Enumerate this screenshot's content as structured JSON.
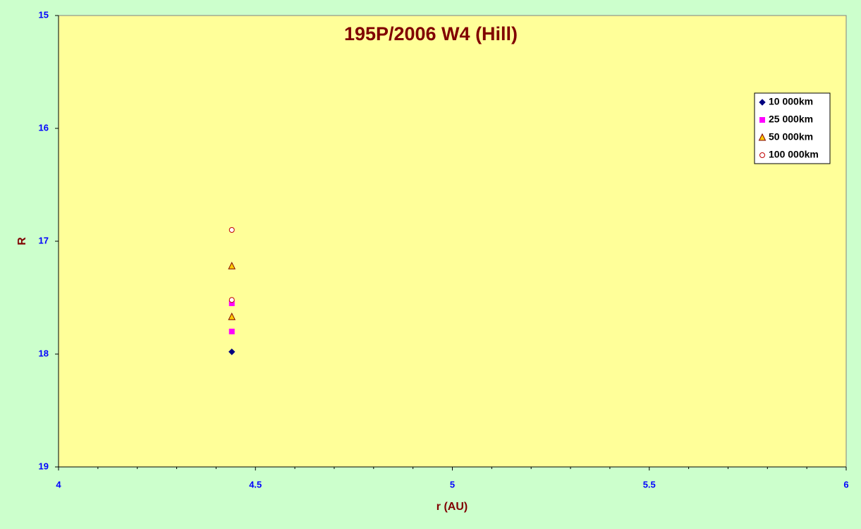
{
  "chart_data": {
    "type": "scatter",
    "title": "195P/2006 W4 (Hill)",
    "x_label": "r (AU)",
    "y_label": "R",
    "xlim": [
      4,
      6
    ],
    "xticks": [
      4,
      4.5,
      5,
      5.5,
      6
    ],
    "x_minor_ticks": [
      4.1,
      4.2,
      4.3,
      4.4,
      4.6,
      4.7,
      4.8,
      4.9,
      5.1,
      5.2,
      5.3,
      5.4,
      5.6,
      5.7,
      5.8,
      5.9
    ],
    "ylim": [
      19,
      15
    ],
    "yticks": [
      15,
      16,
      17,
      18,
      19
    ],
    "legend_position": "upper-right",
    "series": [
      {
        "name": "10 000km",
        "color": "#000080",
        "marker": "diamond",
        "x": [
          4.44
        ],
        "values": [
          17.98
        ]
      },
      {
        "name": "25 000km",
        "color": "#ff00ff",
        "marker": "square",
        "x": [
          4.44,
          4.44
        ],
        "values": [
          17.55,
          17.8
        ]
      },
      {
        "name": "50 000km",
        "color": "#ffcc00",
        "marker": "triangle",
        "x": [
          4.44,
          4.44
        ],
        "values": [
          17.22,
          17.67
        ]
      },
      {
        "name": "100 000km",
        "color": "#c00000",
        "marker": "circle",
        "x": [
          4.44,
          4.44
        ],
        "values": [
          16.9,
          17.52
        ]
      }
    ]
  }
}
